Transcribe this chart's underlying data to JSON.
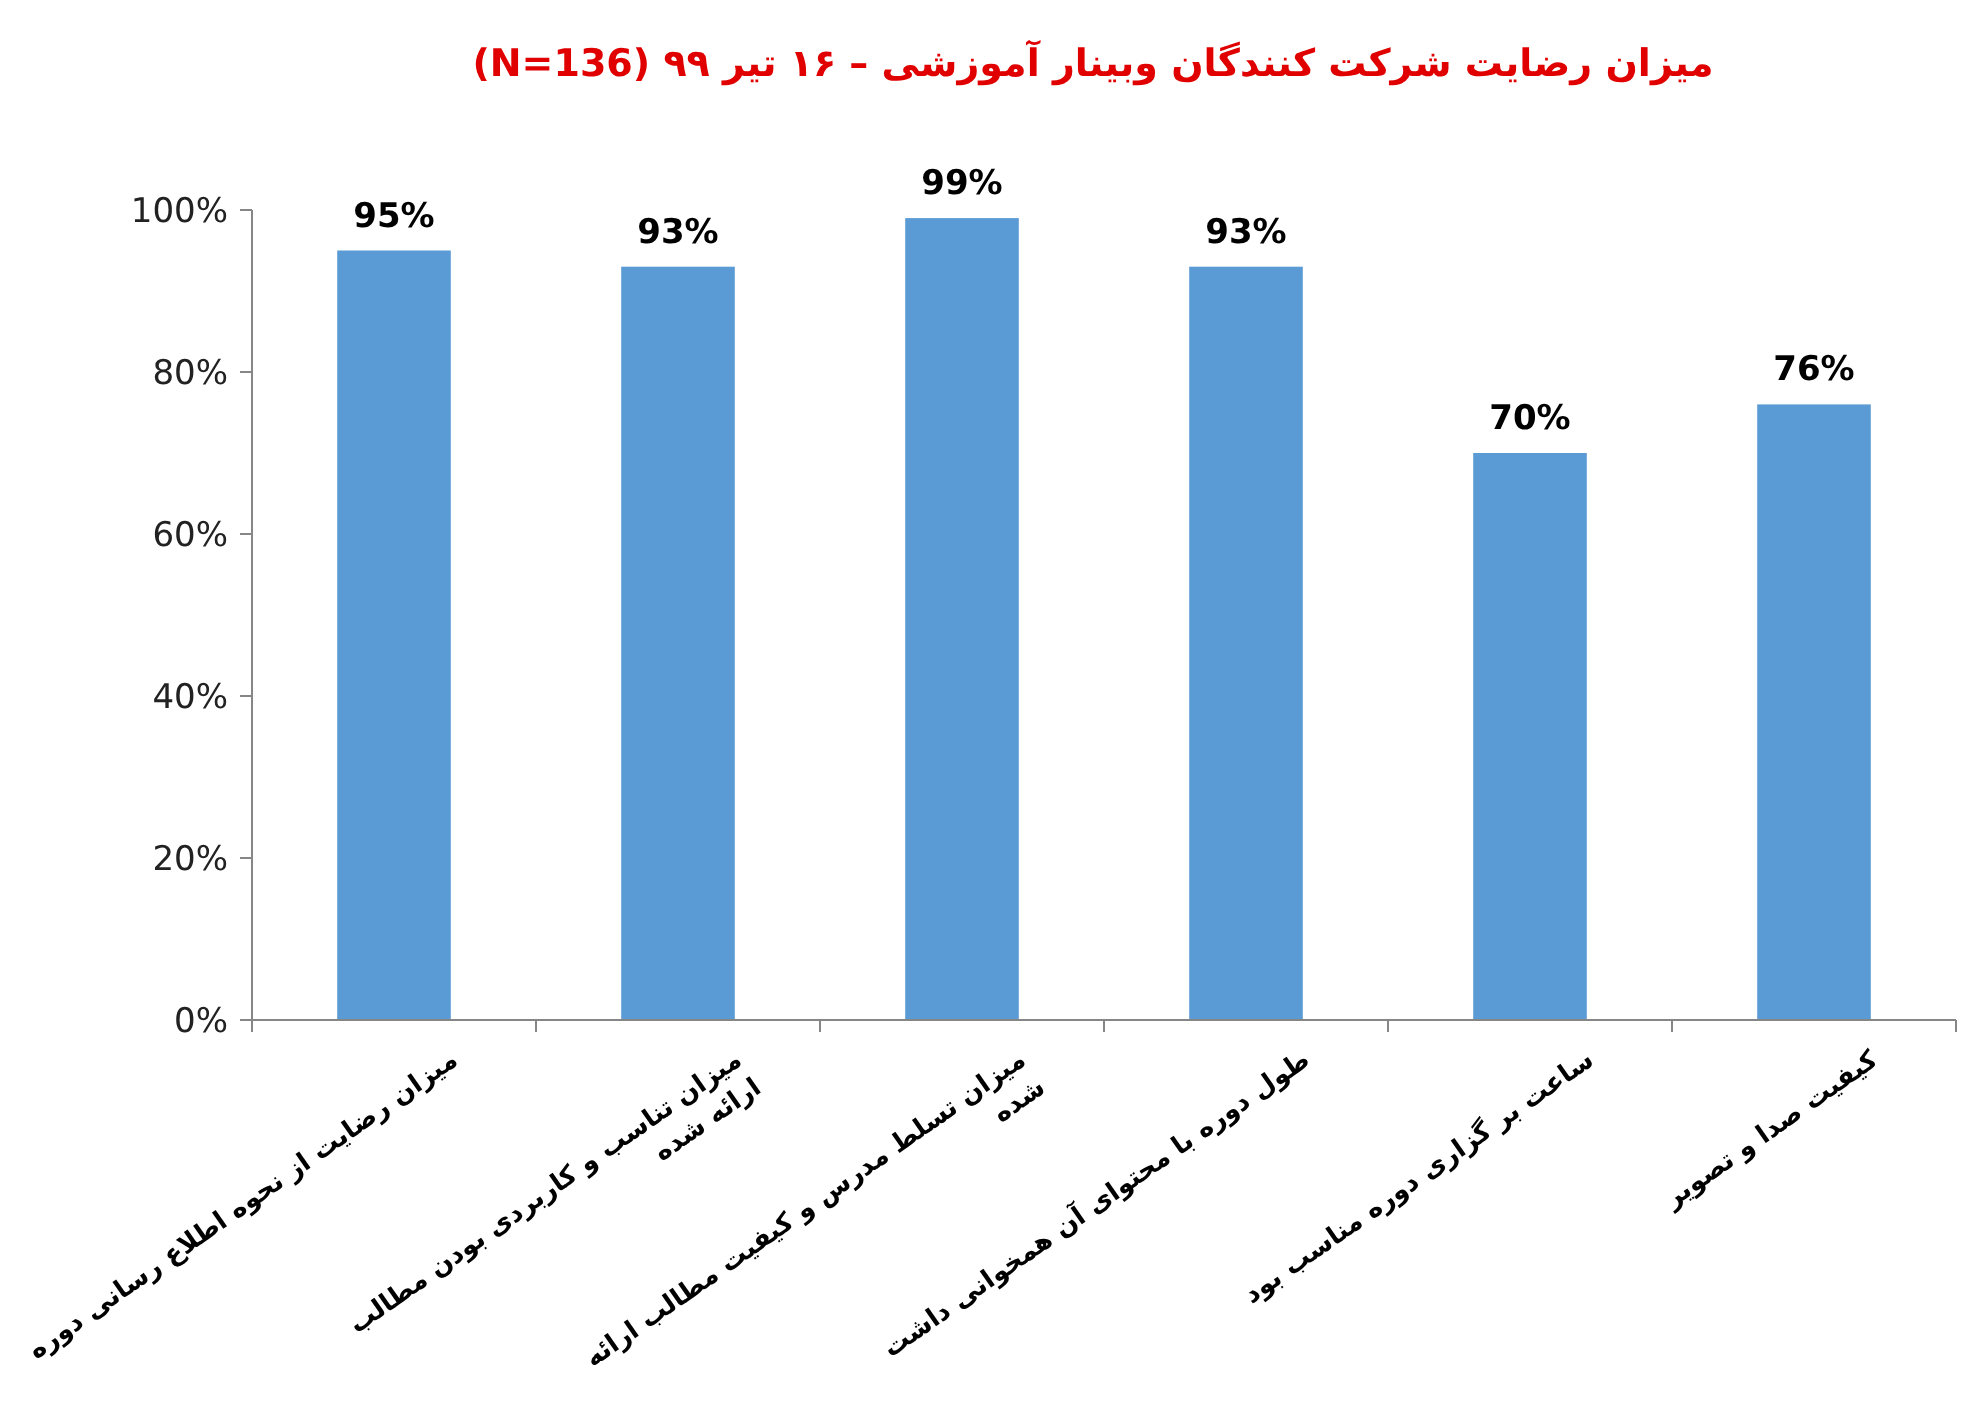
{
  "chart_data": {
    "type": "bar",
    "title": "میزان رضایت شرکت کنندگان وبینار آموزشی – ۱۶ تیر ۹۹  (N=136)",
    "categories": [
      "میزان رضایت از نحوه اطلاع رسانی دوره",
      "میزان تناسب و کاربردی بودن مطالب ارائه شده",
      "میزان تسلط مدرس و کیفیت مطالب ارائه شده",
      "طول دوره با محتوای آن همخوانی داشت",
      "ساعت بر گزاری دوره مناسب بود",
      "کیفیت صدا و تصویر"
    ],
    "values": [
      95,
      93,
      99,
      93,
      70,
      76
    ],
    "value_labels": [
      "95%",
      "93%",
      "99%",
      "93%",
      "70%",
      "76%"
    ],
    "color": "#5b9bd5",
    "ylim": [
      0,
      100
    ],
    "yticks": [
      {
        "value": 0,
        "label": "0%"
      },
      {
        "value": 20,
        "label": "20%"
      },
      {
        "value": 40,
        "label": "40%"
      },
      {
        "value": 60,
        "label": "60%"
      },
      {
        "value": 80,
        "label": "80%"
      },
      {
        "value": 100,
        "label": "100%"
      }
    ],
    "grid": false
  }
}
